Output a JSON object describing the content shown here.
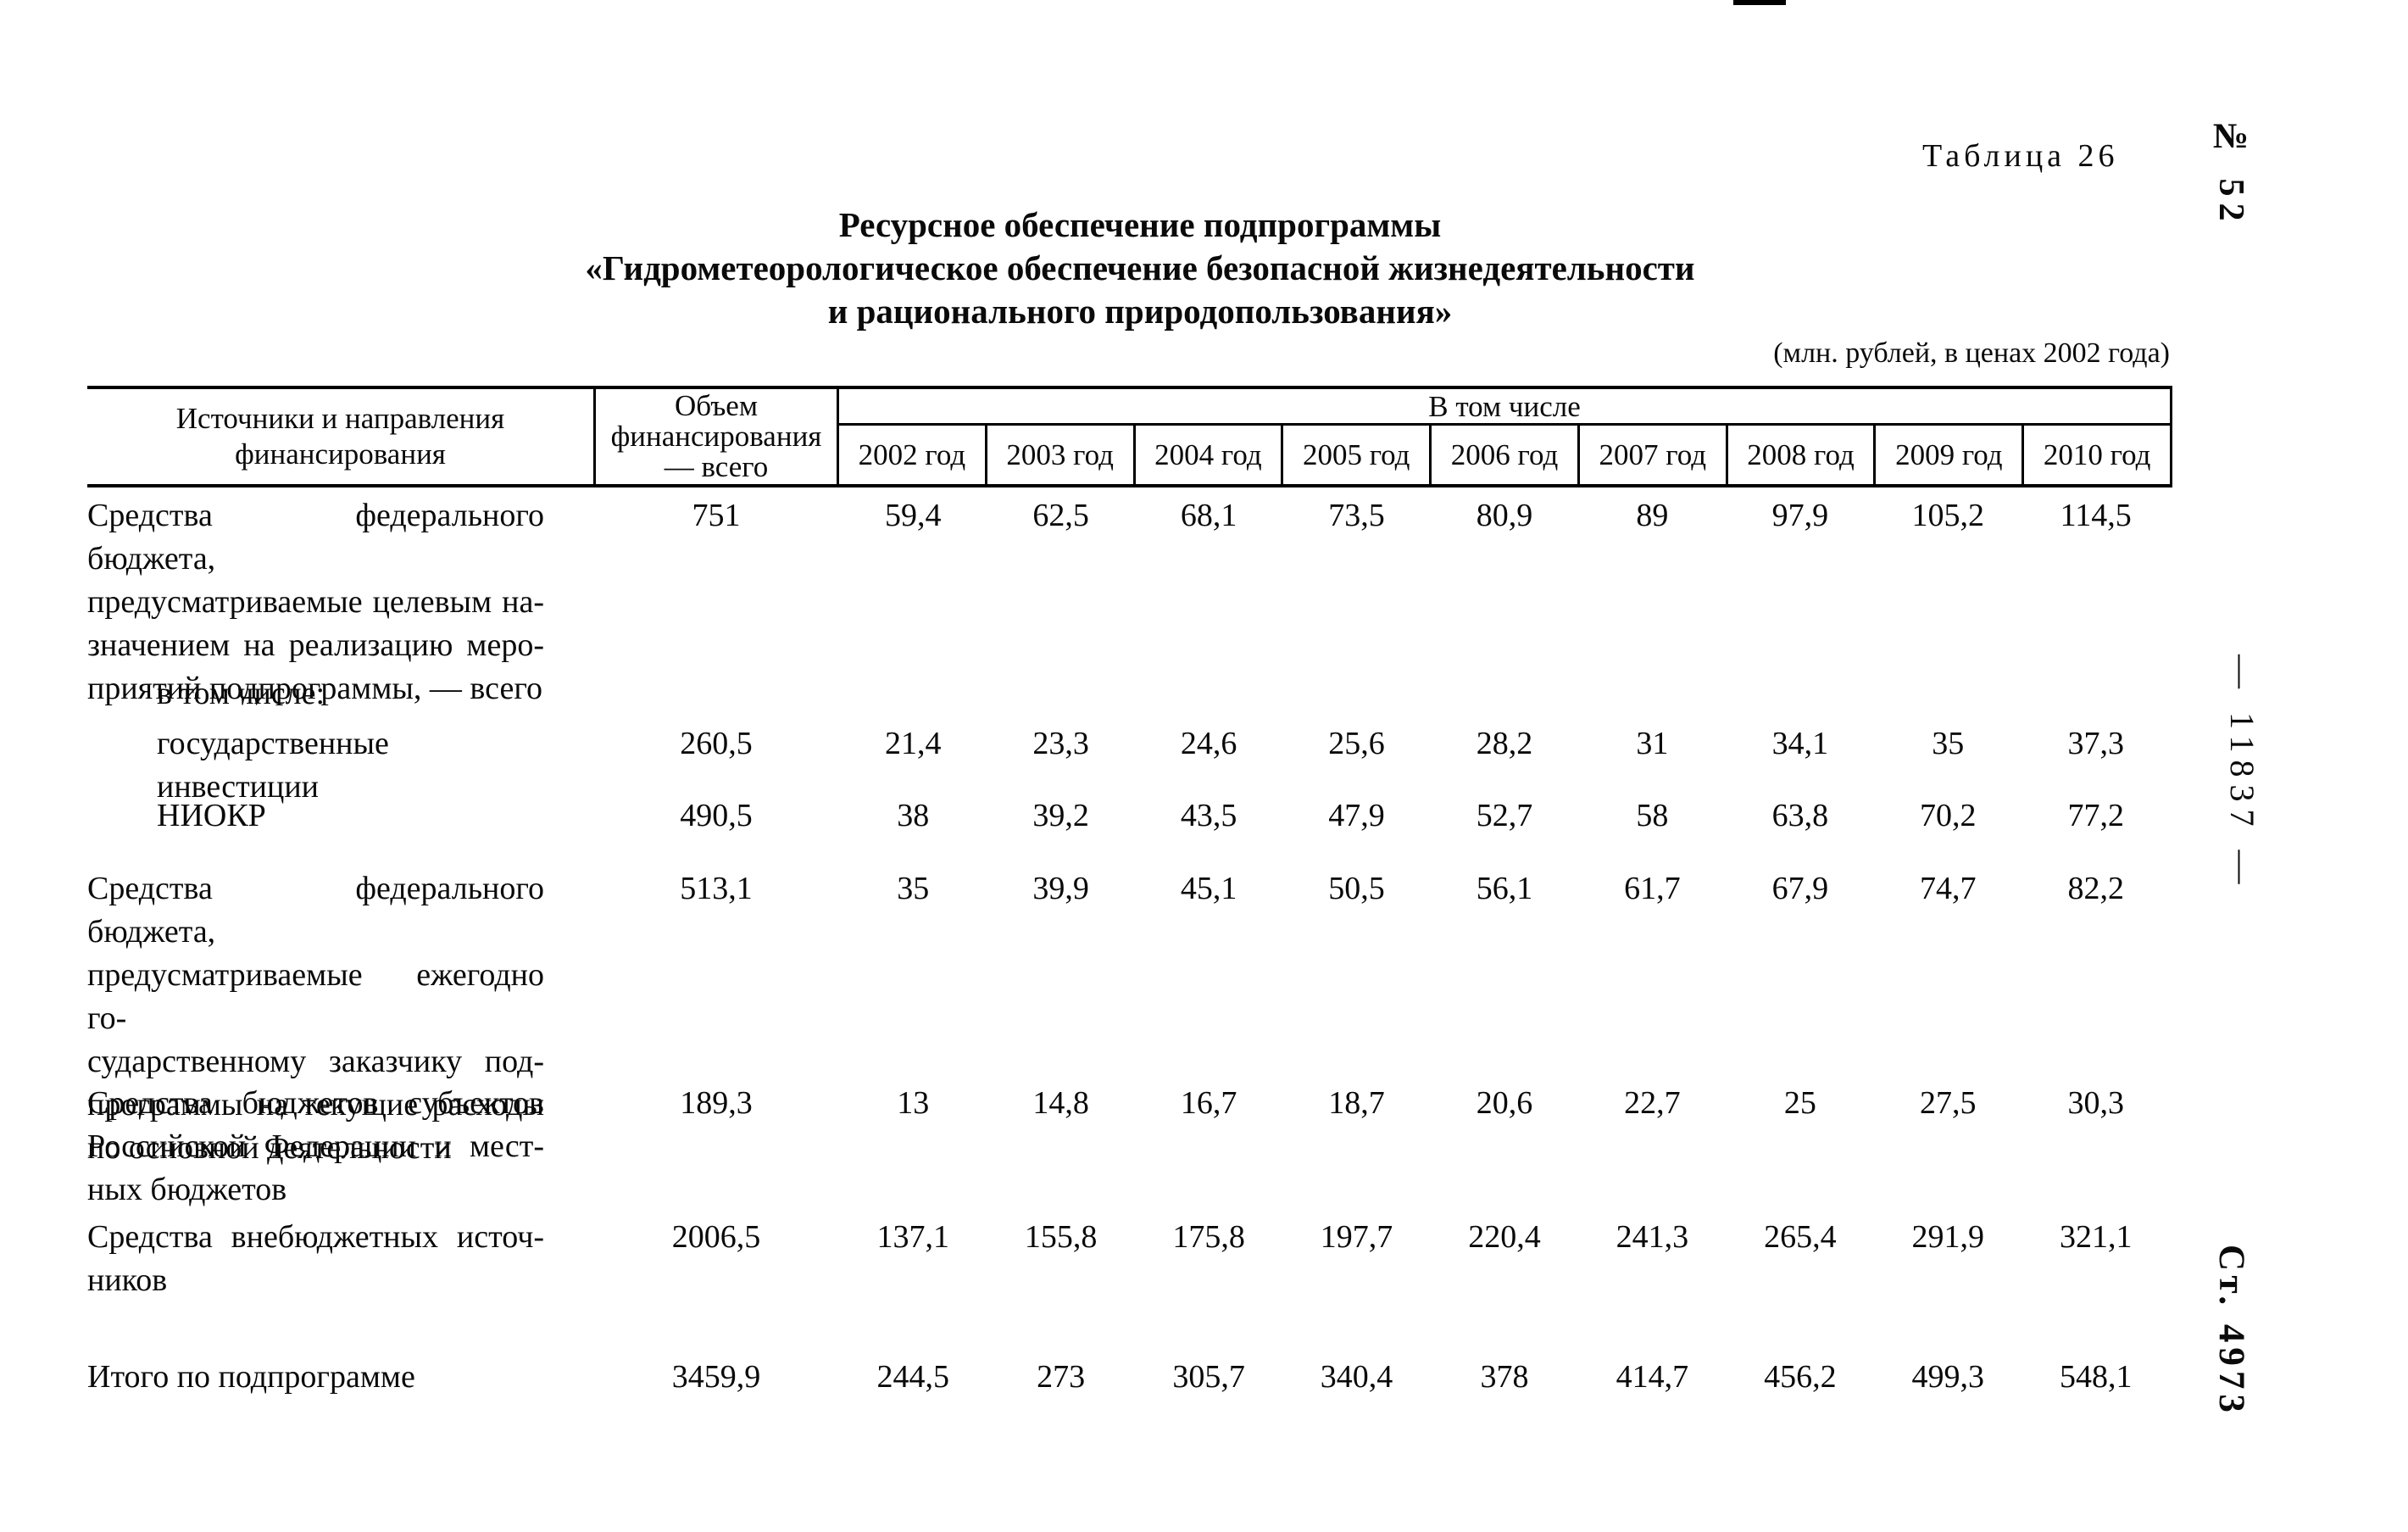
{
  "page": {
    "table_label": "Таблица 26",
    "issue_number": "№ 52",
    "page_number": "— 11837 —",
    "article_number": "Ст. 4973",
    "units_note": "(млн. рублей, в ценах 2002 года)"
  },
  "title": {
    "lines": [
      "Ресурсное обеспечение подпрограммы",
      "«Гидрометеорологическое обеспечение безопасной жизнедеятельности",
      "и рационального природопользования»"
    ]
  },
  "table": {
    "col1_header_lines": [
      "Источники и направления",
      "финансирования"
    ],
    "col2_header_lines": [
      "Объем",
      "финансирования",
      "— всего"
    ],
    "span_header": "В том числе",
    "year_headers": [
      "2002 год",
      "2003 год",
      "2004 год",
      "2005 год",
      "2006 год",
      "2007 год",
      "2008 год",
      "2009 год",
      "2010 год"
    ],
    "rows": [
      {
        "label_lines": [
          "Средства федерального бюджета,",
          "предусматриваемые целевым на-",
          "значением на реализацию меро-",
          "приятий подпрограммы, — всего"
        ],
        "indent": false,
        "values": [
          "751",
          "59,4",
          "62,5",
          "68,1",
          "73,5",
          "80,9",
          "89",
          "97,9",
          "105,2",
          "114,5"
        ]
      },
      {
        "label_lines": [
          "в том числе:"
        ],
        "indent": true,
        "values": []
      },
      {
        "label_lines": [
          "государственные инвестиции"
        ],
        "indent": true,
        "values": [
          "260,5",
          "21,4",
          "23,3",
          "24,6",
          "25,6",
          "28,2",
          "31",
          "34,1",
          "35",
          "37,3"
        ]
      },
      {
        "label_lines": [
          "НИОКР"
        ],
        "indent": true,
        "values": [
          "490,5",
          "38",
          "39,2",
          "43,5",
          "47,9",
          "52,7",
          "58",
          "63,8",
          "70,2",
          "77,2"
        ]
      },
      {
        "label_lines": [
          "Средства федерального бюджета,",
          "предусматриваемые ежегодно го-",
          "сударственному заказчику под-",
          "программы на текущие расходы",
          "по основной деятельности"
        ],
        "indent": false,
        "values": [
          "513,1",
          "35",
          "39,9",
          "45,1",
          "50,5",
          "56,1",
          "61,7",
          "67,9",
          "74,7",
          "82,2"
        ]
      },
      {
        "label_lines": [
          "Средства бюджетов субъектов",
          "Российской Федерации и мест-",
          "ных бюджетов"
        ],
        "indent": false,
        "values": [
          "189,3",
          "13",
          "14,8",
          "16,7",
          "18,7",
          "20,6",
          "22,7",
          "25",
          "27,5",
          "30,3"
        ]
      },
      {
        "label_lines": [
          "Средства внебюджетных источ-",
          "ников"
        ],
        "indent": false,
        "values": [
          "2006,5",
          "137,1",
          "155,8",
          "175,8",
          "197,7",
          "220,4",
          "241,3",
          "265,4",
          "291,9",
          "321,1"
        ]
      },
      {
        "label_lines": [
          "Итого по подпрограмме"
        ],
        "indent": false,
        "values": [
          "3459,9",
          "244,5",
          "273",
          "305,7",
          "340,4",
          "378",
          "414,7",
          "456,2",
          "499,3",
          "548,1"
        ]
      }
    ]
  }
}
